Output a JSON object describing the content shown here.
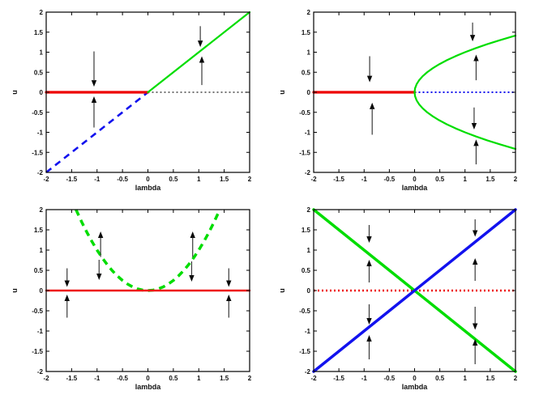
{
  "figure": {
    "background": "#ffffff",
    "frame_color": "#000000",
    "arrow_shaft_color": "#3a3a3a",
    "arrow_head_color": "#0a0a0a"
  },
  "chart_data": [
    {
      "id": "top-left",
      "type": "line",
      "title": "",
      "xlabel": "lambda",
      "ylabel": "u",
      "xlim": [
        -2,
        2
      ],
      "ylim": [
        -2,
        2
      ],
      "grid": false,
      "xticks": [
        -2,
        -1.5,
        -1,
        -0.5,
        0,
        0.5,
        1,
        1.5,
        2
      ],
      "yticks": [
        -2,
        -1.5,
        -1,
        -0.5,
        0,
        0.5,
        1,
        1.5,
        2
      ],
      "xtick_labels": [
        "-2",
        "-1.5",
        "-1",
        "-0.5",
        "0",
        "0.5",
        "1",
        "1.5",
        "2"
      ],
      "ytick_labels": [
        "-2",
        "-1.5",
        "-1",
        "-0.5",
        "0",
        "0.5",
        "1",
        "1.5",
        "2"
      ],
      "curves": [
        {
          "name": "zero-branch-unstable",
          "label": "u = 0 (unstable)",
          "color": "#222222",
          "width": 1.2,
          "dash": "dotted",
          "points": [
            [
              0,
              0
            ],
            [
              2,
              0
            ]
          ]
        },
        {
          "name": "diagonal-branch-unstable",
          "label": "u = lambda (unstable)",
          "color": "#1212ee",
          "width": 2.6,
          "dash": "dashed",
          "points": [
            [
              -2,
              -2
            ],
            [
              0,
              0
            ]
          ]
        },
        {
          "name": "zero-branch-stable",
          "label": "u = 0 (stable)",
          "color": "#ee0000",
          "width": 3.2,
          "dash": "solid",
          "points": [
            [
              -2,
              0
            ],
            [
              0,
              0
            ]
          ]
        },
        {
          "name": "diagonal-branch-stable",
          "label": "u = lambda (stable)",
          "color": "#00dd00",
          "width": 2.2,
          "dash": "solid",
          "points": [
            [
              0,
              0
            ],
            [
              2,
              2
            ]
          ]
        }
      ],
      "arrows": [
        {
          "x": -1.06,
          "from": 1.02,
          "to": 0.14
        },
        {
          "x": -1.06,
          "from": -0.88,
          "to": -0.1
        },
        {
          "x": 1.03,
          "from": 1.65,
          "to": 1.13
        },
        {
          "x": 1.06,
          "from": 0.18,
          "to": 0.9
        }
      ]
    },
    {
      "id": "top-right",
      "type": "line",
      "title": "",
      "xlabel": "lambda",
      "ylabel": "u",
      "xlim": [
        -2,
        2
      ],
      "ylim": [
        -2,
        2
      ],
      "grid": false,
      "xticks": [
        -2,
        -1.5,
        -1,
        -0.5,
        0,
        0.5,
        1,
        1.5,
        2
      ],
      "yticks": [
        -2,
        -1.5,
        -1,
        -0.5,
        0,
        0.5,
        1,
        1.5,
        2
      ],
      "xtick_labels": [
        "-2",
        "-1.5",
        "-1",
        "-0.5",
        "0",
        "0.5",
        "1",
        "1.5",
        "2"
      ],
      "ytick_labels": [
        "-2",
        "-1.5",
        "-1",
        "-0.5",
        "0",
        "0.5",
        "1",
        "1.5",
        "2"
      ],
      "curves": [
        {
          "name": "zero-branch-unstable",
          "label": "u = 0 (unstable)",
          "color": "#1212ee",
          "width": 2.0,
          "dash": "dotted",
          "points": [
            [
              0,
              0
            ],
            [
              2,
              0
            ]
          ]
        },
        {
          "name": "zero-branch-stable",
          "label": "u = 0 (stable)",
          "color": "#ee0000",
          "width": 3.2,
          "dash": "solid",
          "points": [
            [
              -2,
              0
            ],
            [
              0,
              0
            ]
          ]
        },
        {
          "name": "upper-sqrt-branch",
          "label": "u = +sqrt(lambda)",
          "color": "#00dd00",
          "width": 2.2,
          "dash": "solid",
          "points": [
            [
              0,
              0
            ],
            [
              0.01,
              0.1
            ],
            [
              0.04,
              0.2
            ],
            [
              0.09,
              0.3
            ],
            [
              0.16,
              0.4
            ],
            [
              0.25,
              0.5
            ],
            [
              0.36,
              0.6
            ],
            [
              0.49,
              0.7
            ],
            [
              0.64,
              0.8
            ],
            [
              0.81,
              0.9
            ],
            [
              1,
              1
            ],
            [
              1.21,
              1.1
            ],
            [
              1.44,
              1.2
            ],
            [
              1.69,
              1.3
            ],
            [
              1.96,
              1.4
            ],
            [
              2,
              1.414
            ]
          ]
        },
        {
          "name": "lower-sqrt-branch",
          "label": "u = -sqrt(lambda)",
          "color": "#00dd00",
          "width": 2.2,
          "dash": "solid",
          "points": [
            [
              0,
              0
            ],
            [
              0.01,
              -0.1
            ],
            [
              0.04,
              -0.2
            ],
            [
              0.09,
              -0.3
            ],
            [
              0.16,
              -0.4
            ],
            [
              0.25,
              -0.5
            ],
            [
              0.36,
              -0.6
            ],
            [
              0.49,
              -0.7
            ],
            [
              0.64,
              -0.8
            ],
            [
              0.81,
              -0.9
            ],
            [
              1,
              -1
            ],
            [
              1.21,
              -1.1
            ],
            [
              1.44,
              -1.2
            ],
            [
              1.69,
              -1.3
            ],
            [
              1.96,
              -1.4
            ],
            [
              2,
              -1.414
            ]
          ]
        }
      ],
      "arrows": [
        {
          "x": -0.89,
          "from": 0.9,
          "to": 0.25
        },
        {
          "x": -0.84,
          "from": -1.06,
          "to": -0.26
        },
        {
          "x": 1.15,
          "from": 1.74,
          "to": 1.27
        },
        {
          "x": 1.22,
          "from": 0.3,
          "to": 0.94
        },
        {
          "x": 1.18,
          "from": -0.38,
          "to": -0.93
        },
        {
          "x": 1.22,
          "from": -1.8,
          "to": -1.18
        }
      ]
    },
    {
      "id": "bottom-left",
      "type": "line",
      "title": "",
      "xlabel": "lambda",
      "ylabel": "u",
      "xlim": [
        -2,
        2
      ],
      "ylim": [
        -2,
        2
      ],
      "grid": false,
      "xticks": [
        -2,
        -1.5,
        -1,
        -0.5,
        0,
        0.5,
        1,
        1.5,
        2
      ],
      "yticks": [
        -2,
        -1.5,
        -1,
        -0.5,
        0,
        0.5,
        1,
        1.5,
        2
      ],
      "xtick_labels": [
        "-2",
        "-1.5",
        "-1",
        "-0.5",
        "0",
        "0.5",
        "1",
        "1.5",
        "2"
      ],
      "ytick_labels": [
        "-2",
        "-1.5",
        "-1",
        "-0.5",
        "0",
        "0.5",
        "1",
        "1.5",
        "2"
      ],
      "curves": [
        {
          "name": "parabola-branch-unstable",
          "label": "u = lambda^2 (unstable)",
          "color": "#00dd00",
          "width": 3.5,
          "dash": "dashed",
          "points": [
            [
              -1.414,
              2
            ],
            [
              -1.3,
              1.69
            ],
            [
              -1.2,
              1.44
            ],
            [
              -1.1,
              1.21
            ],
            [
              -1,
              1
            ],
            [
              -0.9,
              0.81
            ],
            [
              -0.8,
              0.64
            ],
            [
              -0.7,
              0.49
            ],
            [
              -0.6,
              0.36
            ],
            [
              -0.5,
              0.25
            ],
            [
              -0.4,
              0.16
            ],
            [
              -0.3,
              0.09
            ],
            [
              -0.2,
              0.04
            ],
            [
              -0.1,
              0.01
            ],
            [
              0,
              0
            ],
            [
              0.1,
              0.01
            ],
            [
              0.2,
              0.04
            ],
            [
              0.3,
              0.09
            ],
            [
              0.4,
              0.16
            ],
            [
              0.5,
              0.25
            ],
            [
              0.6,
              0.36
            ],
            [
              0.7,
              0.49
            ],
            [
              0.8,
              0.64
            ],
            [
              0.9,
              0.81
            ],
            [
              1,
              1
            ],
            [
              1.1,
              1.21
            ],
            [
              1.2,
              1.44
            ],
            [
              1.3,
              1.69
            ],
            [
              1.414,
              2
            ]
          ]
        },
        {
          "name": "zero-branch-stable",
          "label": "u = 0 (stable)",
          "color": "#ee1111",
          "width": 2.4,
          "dash": "solid",
          "points": [
            [
              -2,
              0
            ],
            [
              2,
              0
            ]
          ]
        }
      ],
      "arrows": [
        {
          "x": -1.59,
          "from": 0.55,
          "to": 0.09
        },
        {
          "x": -1.59,
          "from": -0.67,
          "to": -0.1
        },
        {
          "x": -0.93,
          "from": 0.83,
          "to": 1.46
        },
        {
          "x": -0.96,
          "from": 0.76,
          "to": 0.26
        },
        {
          "x": 0.88,
          "from": 0.83,
          "to": 1.46
        },
        {
          "x": 0.86,
          "from": 0.72,
          "to": 0.22
        },
        {
          "x": 1.59,
          "from": 0.55,
          "to": 0.09
        },
        {
          "x": 1.59,
          "from": -0.67,
          "to": -0.1
        }
      ]
    },
    {
      "id": "bottom-right",
      "type": "line",
      "title": "",
      "xlabel": "lambda",
      "ylabel": "u",
      "xlim": [
        -2,
        2
      ],
      "ylim": [
        -2,
        2
      ],
      "grid": false,
      "xticks": [
        -2,
        -1.5,
        -1,
        -0.5,
        0,
        0.5,
        1,
        1.5,
        2
      ],
      "yticks": [
        -2,
        -1.5,
        -1,
        -0.5,
        0,
        0.5,
        1,
        1.5,
        2
      ],
      "xtick_labels": [
        "-2",
        "-1.5",
        "-1",
        "-0.5",
        "0",
        "0.5",
        "1",
        "1.5",
        "2"
      ],
      "ytick_labels": [
        "-2",
        "-1.5",
        "-1",
        "-0.5",
        "0",
        "0.5",
        "1",
        "1.5",
        "2"
      ],
      "curves": [
        {
          "name": "zero-branch-dotted",
          "label": "u = 0",
          "color": "#ee0000",
          "width": 2.4,
          "dash": "dotted",
          "points": [
            [
              -2,
              0
            ],
            [
              2,
              0
            ]
          ]
        },
        {
          "name": "anti-diagonal-branch",
          "label": "u = -lambda",
          "color": "#00dd00",
          "width": 3.5,
          "dash": "solid",
          "points": [
            [
              -2,
              2
            ],
            [
              2,
              -2
            ]
          ]
        },
        {
          "name": "diagonal-branch",
          "label": "u = lambda",
          "color": "#1212ee",
          "width": 3.5,
          "dash": "solid",
          "points": [
            [
              -2,
              -2
            ],
            [
              2,
              2
            ]
          ]
        }
      ],
      "arrows": [
        {
          "x": -0.9,
          "from": 1.62,
          "to": 1.18
        },
        {
          "x": -0.9,
          "from": 0.2,
          "to": 0.76
        },
        {
          "x": -0.9,
          "from": -0.34,
          "to": -0.84
        },
        {
          "x": -0.9,
          "from": -1.7,
          "to": -1.1
        },
        {
          "x": 1.2,
          "from": 1.76,
          "to": 1.33
        },
        {
          "x": 1.2,
          "from": 0.24,
          "to": 0.8
        },
        {
          "x": 1.2,
          "from": -0.4,
          "to": -0.97
        },
        {
          "x": 1.2,
          "from": -1.82,
          "to": -1.2
        }
      ]
    }
  ]
}
